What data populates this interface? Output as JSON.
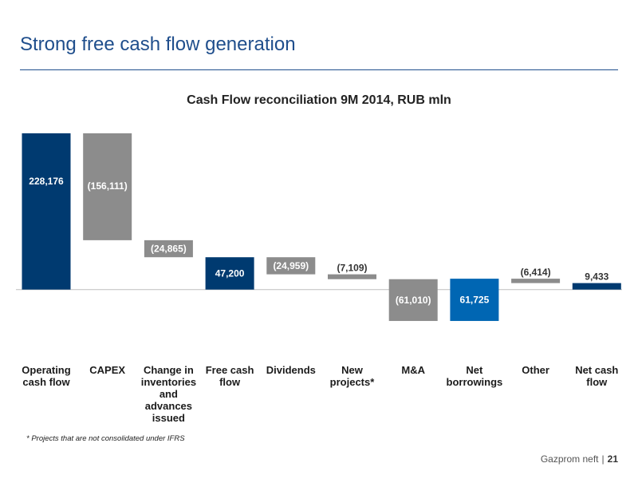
{
  "slide_title": "Strong free cash flow generation",
  "footnote": "* Projects that are not consolidated under IFRS",
  "footer": {
    "company": "Gazprom neft",
    "page": "21"
  },
  "colors": {
    "dark_blue": "#003a70",
    "grey": "#8c8c8c",
    "bright_blue": "#0066b3",
    "label_light": "#ffffff",
    "label_dark": "#333333"
  },
  "chart_data": {
    "type": "bar",
    "subtype": "waterfall",
    "title": "Cash Flow reconciliation 9M 2014, RUB mln",
    "categories": [
      "Operating cash flow",
      "CAPEX",
      "Change in inventories and advances issued",
      "Free cash flow",
      "Dividends",
      "New projects*",
      "M&A",
      "Net borrowings",
      "Other",
      "Net cash flow"
    ],
    "category_labels": [
      [
        "Operating",
        "cash flow"
      ],
      [
        "CAPEX"
      ],
      [
        "Change in",
        "inventories",
        "and",
        "advances",
        "issued"
      ],
      [
        "Free cash",
        "flow"
      ],
      [
        "Dividends"
      ],
      [
        "New",
        "projects*"
      ],
      [
        "M&A"
      ],
      [
        "Net",
        "borrowings"
      ],
      [
        "Other"
      ],
      [
        "Net cash",
        "flow"
      ]
    ],
    "values": [
      228176,
      -156111,
      -24865,
      47200,
      -24959,
      -7109,
      -61010,
      61725,
      -6414,
      9433
    ],
    "value_labels": [
      "228,176",
      "(156,111)",
      "(24,865)",
      "47,200",
      "(24,959)",
      "(7,109)",
      "(61,010)",
      "61,725",
      "(6,414)",
      "9,433"
    ],
    "bar_kind": [
      "total",
      "delta",
      "delta",
      "total",
      "delta",
      "delta",
      "delta",
      "delta",
      "delta",
      "total"
    ],
    "bar_color": [
      "dark_blue",
      "grey",
      "grey",
      "dark_blue",
      "grey",
      "grey",
      "grey",
      "bright_blue",
      "grey",
      "dark_blue"
    ],
    "label_placement": [
      "inside",
      "inside",
      "inside",
      "inside",
      "inside",
      "above",
      "inside",
      "inside",
      "above",
      "above"
    ],
    "ylim": [
      -47000,
      228176
    ],
    "grid": false,
    "legend": "none"
  }
}
